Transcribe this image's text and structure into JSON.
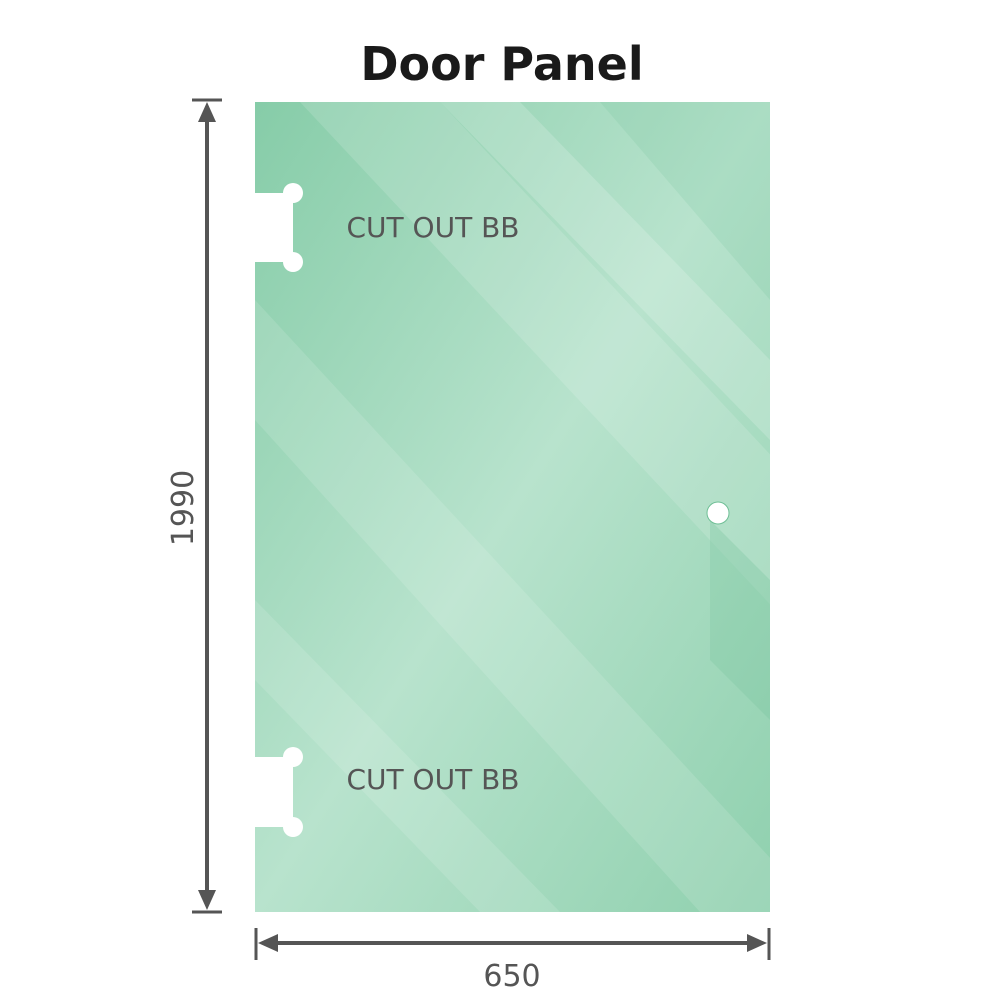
{
  "title": "Door Panel",
  "cutouts": [
    {
      "label": "CUT OUT BB"
    },
    {
      "label": "CUT OUT BB"
    }
  ],
  "dimensions": {
    "height": "1990",
    "width": "650"
  },
  "colors": {
    "glass": "#8ccfac",
    "glass_light": "#bfe6d3",
    "dimension_line": "#555555"
  }
}
